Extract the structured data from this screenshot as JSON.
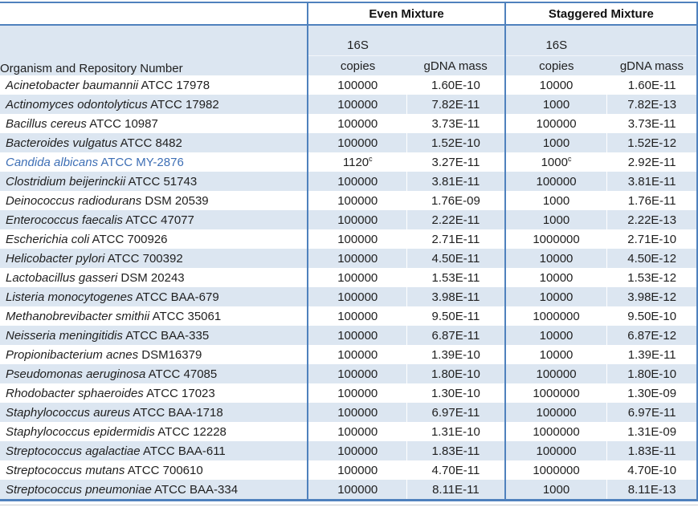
{
  "table": {
    "group_headers": {
      "even": "Even Mixture",
      "staggered": "Staggered Mixture"
    },
    "column_headers": {
      "organism": "Organism and Repository Number",
      "copies_line1": "16S",
      "copies_line2": "copies",
      "mass": "gDNA mass"
    },
    "colors": {
      "border_blue": "#4f81bd",
      "band_blue": "#dce6f1",
      "highlight_text_blue": "#3e6fb5"
    },
    "rows": [
      {
        "species": "Acinetobacter baumannii",
        "strain": "ATCC 17978",
        "even_copies": "100000",
        "even_sup": "",
        "even_mass": "1.60E-10",
        "stag_copies": "10000",
        "stag_sup": "",
        "stag_mass": "1.60E-11",
        "highlight": false
      },
      {
        "species": "Actinomyces odontolyticus",
        "strain": "ATCC 17982",
        "even_copies": "100000",
        "even_sup": "",
        "even_mass": "7.82E-11",
        "stag_copies": "1000",
        "stag_sup": "",
        "stag_mass": "7.82E-13",
        "highlight": false
      },
      {
        "species": "Bacillus cereus",
        "strain": "ATCC 10987",
        "even_copies": "100000",
        "even_sup": "",
        "even_mass": "3.73E-11",
        "stag_copies": "100000",
        "stag_sup": "",
        "stag_mass": "3.73E-11",
        "highlight": false
      },
      {
        "species": "Bacteroides vulgatus",
        "strain": "ATCC 8482",
        "even_copies": "100000",
        "even_sup": "",
        "even_mass": "1.52E-10",
        "stag_copies": "1000",
        "stag_sup": "",
        "stag_mass": "1.52E-12",
        "highlight": false
      },
      {
        "species": "Candida albicans",
        "strain": "ATCC MY-2876",
        "even_copies": "1120",
        "even_sup": "c",
        "even_mass": "3.27E-11",
        "stag_copies": "1000",
        "stag_sup": "c",
        "stag_mass": "2.92E-11",
        "highlight": true
      },
      {
        "species": "Clostridium beijerinckii",
        "strain": "ATCC 51743",
        "even_copies": "100000",
        "even_sup": "",
        "even_mass": "3.81E-11",
        "stag_copies": "100000",
        "stag_sup": "",
        "stag_mass": "3.81E-11",
        "highlight": false
      },
      {
        "species": "Deinococcus radiodurans",
        "strain": "DSM 20539",
        "even_copies": "100000",
        "even_sup": "",
        "even_mass": "1.76E-09",
        "stag_copies": "1000",
        "stag_sup": "",
        "stag_mass": "1.76E-11",
        "highlight": false
      },
      {
        "species": "Enterococcus faecalis",
        "strain": "ATCC 47077",
        "even_copies": "100000",
        "even_sup": "",
        "even_mass": "2.22E-11",
        "stag_copies": "1000",
        "stag_sup": "",
        "stag_mass": "2.22E-13",
        "highlight": false
      },
      {
        "species": "Escherichia coli",
        "strain": "ATCC 700926",
        "even_copies": "100000",
        "even_sup": "",
        "even_mass": "2.71E-11",
        "stag_copies": "1000000",
        "stag_sup": "",
        "stag_mass": "2.71E-10",
        "highlight": false
      },
      {
        "species": "Helicobacter pylori",
        "strain": "ATCC 700392",
        "even_copies": "100000",
        "even_sup": "",
        "even_mass": "4.50E-11",
        "stag_copies": "10000",
        "stag_sup": "",
        "stag_mass": "4.50E-12",
        "highlight": false
      },
      {
        "species": "Lactobacillus gasseri",
        "strain": "DSM 20243",
        "even_copies": "100000",
        "even_sup": "",
        "even_mass": "1.53E-11",
        "stag_copies": "10000",
        "stag_sup": "",
        "stag_mass": "1.53E-12",
        "highlight": false
      },
      {
        "species": "Listeria monocytogenes",
        "strain": "ATCC BAA-679",
        "even_copies": "100000",
        "even_sup": "",
        "even_mass": "3.98E-11",
        "stag_copies": "10000",
        "stag_sup": "",
        "stag_mass": "3.98E-12",
        "highlight": false
      },
      {
        "species": "Methanobrevibacter smithii",
        "strain": "ATCC 35061",
        "even_copies": "100000",
        "even_sup": "",
        "even_mass": "9.50E-11",
        "stag_copies": "1000000",
        "stag_sup": "",
        "stag_mass": "9.50E-10",
        "highlight": false
      },
      {
        "species": "Neisseria meningitidis",
        "strain": "ATCC BAA-335",
        "even_copies": "100000",
        "even_sup": "",
        "even_mass": "6.87E-11",
        "stag_copies": "10000",
        "stag_sup": "",
        "stag_mass": "6.87E-12",
        "highlight": false
      },
      {
        "species": "Propionibacterium acnes",
        "strain": "DSM16379",
        "even_copies": "100000",
        "even_sup": "",
        "even_mass": "1.39E-10",
        "stag_copies": "10000",
        "stag_sup": "",
        "stag_mass": "1.39E-11",
        "highlight": false
      },
      {
        "species": "Pseudomonas aeruginosa",
        "strain": "ATCC 47085",
        "even_copies": "100000",
        "even_sup": "",
        "even_mass": "1.80E-10",
        "stag_copies": "100000",
        "stag_sup": "",
        "stag_mass": "1.80E-10",
        "highlight": false
      },
      {
        "species": "Rhodobacter sphaeroides",
        "strain": "ATCC 17023",
        "even_copies": "100000",
        "even_sup": "",
        "even_mass": "1.30E-10",
        "stag_copies": "1000000",
        "stag_sup": "",
        "stag_mass": "1.30E-09",
        "highlight": false
      },
      {
        "species": "Staphylococcus aureus",
        "strain": "ATCC BAA-1718",
        "even_copies": "100000",
        "even_sup": "",
        "even_mass": "6.97E-11",
        "stag_copies": "100000",
        "stag_sup": "",
        "stag_mass": "6.97E-11",
        "highlight": false
      },
      {
        "species": "Staphylococcus epidermidis",
        "strain": "ATCC 12228",
        "even_copies": "100000",
        "even_sup": "",
        "even_mass": "1.31E-10",
        "stag_copies": "1000000",
        "stag_sup": "",
        "stag_mass": "1.31E-09",
        "highlight": false
      },
      {
        "species": "Streptococcus agalactiae",
        "strain": "ATCC BAA-611",
        "even_copies": "100000",
        "even_sup": "",
        "even_mass": "1.83E-11",
        "stag_copies": "100000",
        "stag_sup": "",
        "stag_mass": "1.83E-11",
        "highlight": false
      },
      {
        "species": "Streptococcus mutans",
        "strain": "ATCC 700610",
        "even_copies": "100000",
        "even_sup": "",
        "even_mass": "4.70E-11",
        "stag_copies": "1000000",
        "stag_sup": "",
        "stag_mass": "4.70E-10",
        "highlight": false
      },
      {
        "species": "Streptococcus pneumoniae",
        "strain": "ATCC BAA-334",
        "even_copies": "100000",
        "even_sup": "",
        "even_mass": "8.11E-11",
        "stag_copies": "1000",
        "stag_sup": "",
        "stag_mass": "8.11E-13",
        "highlight": false
      }
    ]
  }
}
